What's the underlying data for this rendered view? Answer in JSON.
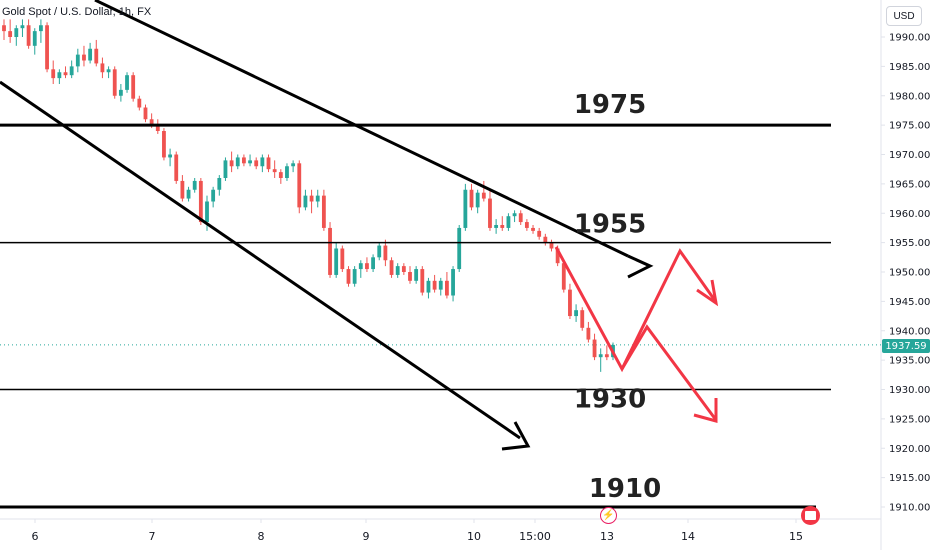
{
  "chart_data": {
    "type": "candlestick",
    "title": "Gold Spot / U.S. Dollar, 1h, FX",
    "currency": "USD",
    "last_price": "1937.59",
    "y_ticks": [
      "1990.00",
      "1985.00",
      "1980.00",
      "1975.00",
      "1970.00",
      "1965.00",
      "1960.00",
      "1955.00",
      "1950.00",
      "1945.00",
      "1940.00",
      "1935.00",
      "1930.00",
      "1925.00",
      "1920.00",
      "1915.00",
      "1910.00"
    ],
    "y_tick_values": [
      1990,
      1985,
      1980,
      1975,
      1970,
      1965,
      1960,
      1955,
      1950,
      1945,
      1940,
      1935,
      1930,
      1925,
      1920,
      1915,
      1910
    ],
    "ylim": [
      1909,
      1993
    ],
    "x_ticks": [
      "6",
      "7",
      "8",
      "9",
      "10",
      "15:00",
      "13",
      "14",
      "15"
    ],
    "x_tick_positions": [
      0.0,
      1.17,
      2.26,
      3.31,
      4.39,
      5.0,
      5.72,
      6.53,
      7.61
    ],
    "xlim": [
      -0.33,
      7.55
    ],
    "series": [
      {
        "name": "",
        "candles": [
          [
            1992,
            1993,
            1989.5,
            1991
          ],
          [
            1991,
            1993,
            1989,
            1990
          ],
          [
            1990,
            1992,
            1988.5,
            1991.5
          ],
          [
            1991.5,
            1993,
            1990,
            1992
          ],
          [
            1992,
            1993,
            1988,
            1988.5
          ],
          [
            1988.5,
            1991.5,
            1987,
            1991
          ],
          [
            1991,
            1993,
            1989,
            1992
          ],
          [
            1992,
            1992.5,
            1984,
            1984.5
          ],
          [
            1984.5,
            1986,
            1982,
            1983
          ],
          [
            1983,
            1984.5,
            1982,
            1984
          ],
          [
            1984,
            1985,
            1983,
            1983.5
          ],
          [
            1983.5,
            1986,
            1983,
            1985
          ],
          [
            1985,
            1988,
            1984,
            1987
          ],
          [
            1987,
            1988.5,
            1985,
            1986
          ],
          [
            1986,
            1989,
            1985.5,
            1988
          ],
          [
            1988,
            1989.5,
            1985,
            1985.5
          ],
          [
            1985.5,
            1986.5,
            1983,
            1984
          ],
          [
            1984,
            1985,
            1983,
            1984.5
          ],
          [
            1984.5,
            1985,
            1979.5,
            1980
          ],
          [
            1980,
            1982,
            1979,
            1981
          ],
          [
            1981,
            1984,
            1980.5,
            1983.5
          ],
          [
            1983.5,
            1984,
            1979,
            1979.5
          ],
          [
            1979.5,
            1980,
            1977.5,
            1978
          ],
          [
            1978,
            1978.5,
            1975.5,
            1976
          ],
          [
            1976,
            1977,
            1974.5,
            1975
          ],
          [
            1975,
            1976,
            1973.5,
            1974
          ],
          [
            1974,
            1974.5,
            1969,
            1969.5
          ],
          [
            1969.5,
            1971,
            1968,
            1970
          ],
          [
            1970,
            1970.5,
            1965,
            1965.5
          ],
          [
            1965.5,
            1966.5,
            1962,
            1962.5
          ],
          [
            1962.5,
            1964.5,
            1962,
            1964
          ],
          [
            1964,
            1966,
            1963.5,
            1965.5
          ],
          [
            1965.5,
            1966,
            1958,
            1958.5
          ],
          [
            1958.5,
            1963,
            1957,
            1962
          ],
          [
            1962,
            1964.5,
            1961,
            1964
          ],
          [
            1964,
            1966.5,
            1963,
            1966
          ],
          [
            1966,
            1969.5,
            1965.5,
            1969
          ],
          [
            1969,
            1970.5,
            1967,
            1968
          ],
          [
            1968,
            1970,
            1967.5,
            1969.5
          ],
          [
            1969.5,
            1970,
            1968,
            1968.5
          ],
          [
            1968.5,
            1970,
            1968,
            1969
          ],
          [
            1969,
            1969.5,
            1967.5,
            1968
          ],
          [
            1968,
            1970,
            1967,
            1969.5
          ],
          [
            1969.5,
            1970,
            1967,
            1967.5
          ],
          [
            1967.5,
            1969,
            1966,
            1967
          ],
          [
            1967,
            1967.5,
            1965,
            1966
          ],
          [
            1966,
            1968.5,
            1965.5,
            1968
          ],
          [
            1968,
            1969,
            1967,
            1968.5
          ],
          [
            1968.5,
            1969,
            1960,
            1961
          ],
          [
            1961,
            1964,
            1960.5,
            1963
          ],
          [
            1963,
            1964,
            1960,
            1962
          ],
          [
            1962,
            1964,
            1961,
            1963
          ],
          [
            1963,
            1964,
            1957,
            1957.5
          ],
          [
            1957.5,
            1958.5,
            1949,
            1949.5
          ],
          [
            1949.5,
            1955,
            1949,
            1954
          ],
          [
            1954,
            1954.5,
            1950,
            1950.5
          ],
          [
            1950.5,
            1951,
            1947.5,
            1948
          ],
          [
            1948,
            1951,
            1947.5,
            1950.5
          ],
          [
            1950.5,
            1952,
            1949,
            1951.5
          ],
          [
            1951.5,
            1952.5,
            1950,
            1950.5
          ],
          [
            1950.5,
            1953,
            1950,
            1952.5
          ],
          [
            1952.5,
            1955,
            1952,
            1954.5
          ],
          [
            1954.5,
            1955.5,
            1951,
            1952
          ],
          [
            1952,
            1952.5,
            1949,
            1949.5
          ],
          [
            1949.5,
            1951.5,
            1949,
            1951
          ],
          [
            1951,
            1951.5,
            1949.5,
            1950
          ],
          [
            1950,
            1951,
            1948,
            1948.5
          ],
          [
            1948.5,
            1951,
            1948,
            1950.5
          ],
          [
            1950.5,
            1951,
            1946,
            1946.5
          ],
          [
            1946.5,
            1949,
            1945.5,
            1948.5
          ],
          [
            1948.5,
            1949.5,
            1946.5,
            1947
          ],
          [
            1947,
            1949,
            1946,
            1948.5
          ],
          [
            1948.5,
            1950,
            1945.5,
            1946
          ],
          [
            1946,
            1951,
            1945,
            1950.5
          ],
          [
            1950.5,
            1958,
            1950,
            1957.5
          ],
          [
            1957.5,
            1965,
            1957,
            1964
          ],
          [
            1964,
            1965,
            1960.5,
            1961
          ],
          [
            1961,
            1964,
            1960,
            1963.5
          ],
          [
            1963.5,
            1965.5,
            1962,
            1962.5
          ],
          [
            1962.5,
            1964,
            1957,
            1957.5
          ],
          [
            1957.5,
            1959,
            1956.5,
            1958
          ],
          [
            1958,
            1959.5,
            1957,
            1957.5
          ],
          [
            1957.5,
            1960,
            1957,
            1959.5
          ],
          [
            1959.5,
            1960.5,
            1958.5,
            1960
          ],
          [
            1960,
            1960.5,
            1958,
            1958.5
          ],
          [
            1958.5,
            1959,
            1957,
            1957.5
          ],
          [
            1957.5,
            1958,
            1956.5,
            1957
          ],
          [
            1957,
            1957.5,
            1955.5,
            1956
          ],
          [
            1956,
            1956.5,
            1954.5,
            1955
          ],
          [
            1955,
            1955.5,
            1953.5,
            1954
          ],
          [
            1954,
            1954.5,
            1951,
            1951.5
          ],
          [
            1951.5,
            1952,
            1946.5,
            1947
          ],
          [
            1947,
            1948,
            1942,
            1942.5
          ],
          [
            1942.5,
            1944.5,
            1941.5,
            1943.5
          ],
          [
            1943.5,
            1944,
            1940,
            1940.5
          ],
          [
            1940.5,
            1941.5,
            1938,
            1938.5
          ],
          [
            1938.5,
            1939.5,
            1935,
            1935.5
          ],
          [
            1935.5,
            1937,
            1933,
            1936
          ],
          [
            1936,
            1937.5,
            1935,
            1935.5
          ],
          [
            1935.5,
            1938,
            1935,
            1937.59
          ]
        ]
      }
    ],
    "horizontal_levels": [
      {
        "label": "1975",
        "value": 1975
      },
      {
        "label": "1955",
        "value": 1955
      },
      {
        "label": "1930",
        "value": 1930
      },
      {
        "label": "1910",
        "value": 1910
      }
    ],
    "colors": {
      "up": "#26a69a",
      "down": "#ef5350",
      "projection": "#f23645",
      "lines": "#000000",
      "last_price": "#26a69a"
    }
  }
}
